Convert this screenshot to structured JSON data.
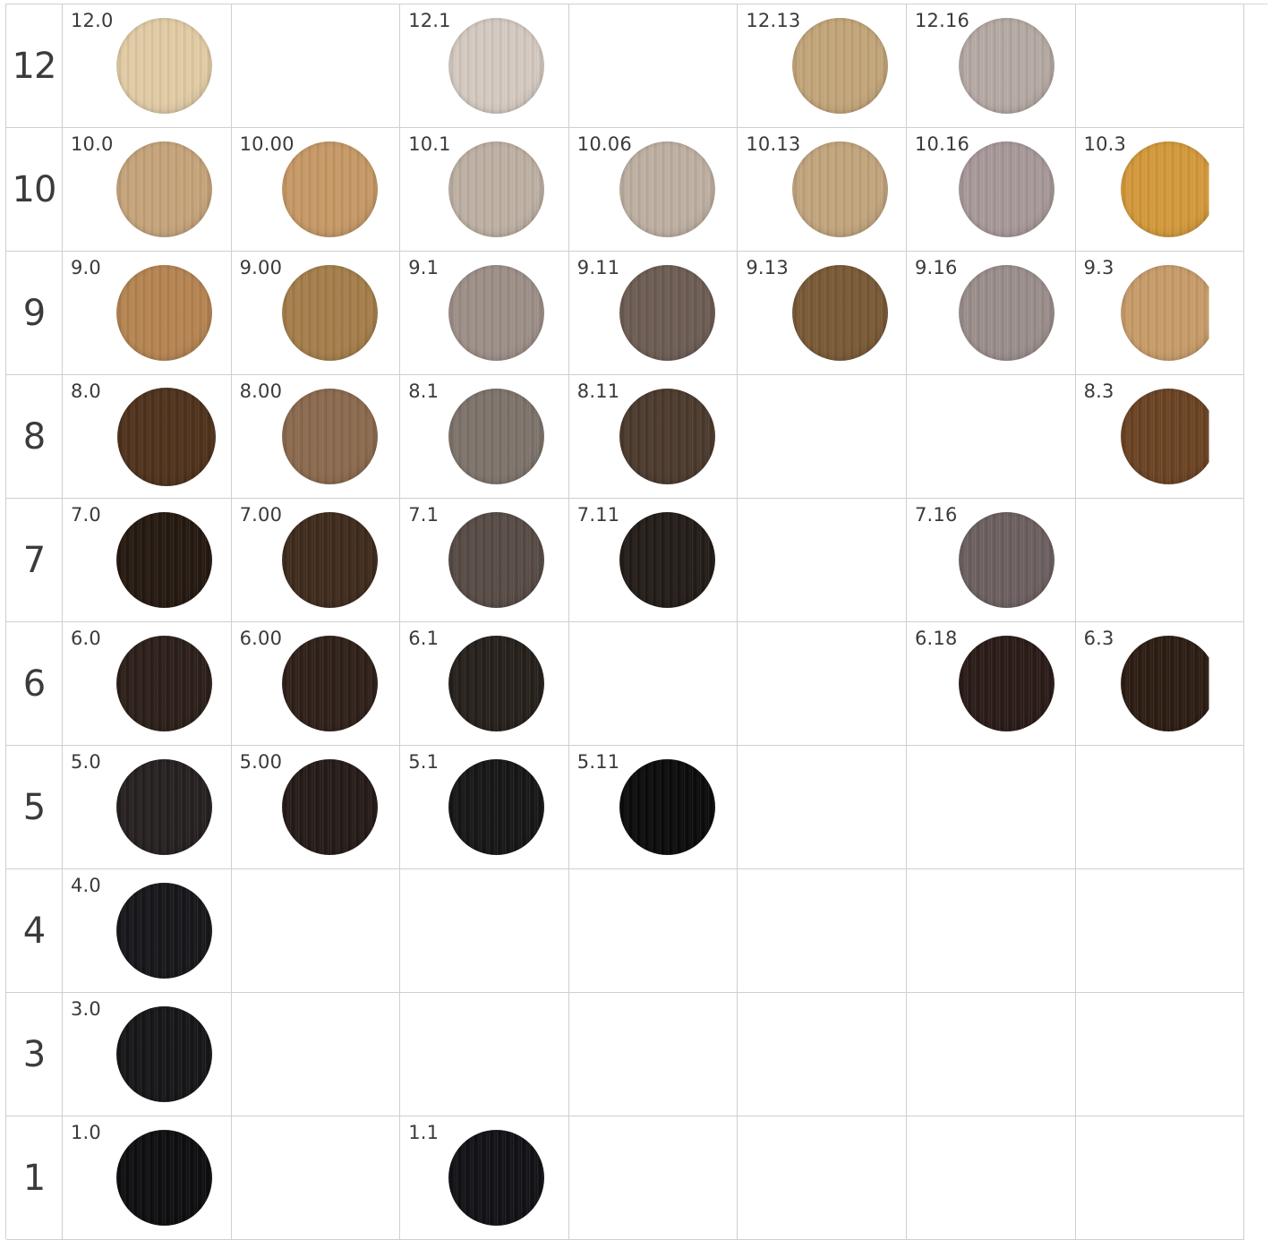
{
  "rows": [
    {
      "level": "12",
      "cells": [
        {
          "code": "12.0",
          "color": "#e3cda6"
        },
        null,
        {
          "code": "12.1",
          "color": "#d6cbc2"
        },
        null,
        {
          "code": "12.13",
          "color": "#c4a67a"
        },
        {
          "code": "12.16",
          "color": "#b6aaa4"
        },
        null
      ]
    },
    {
      "level": "10",
      "cells": [
        {
          "code": "10.0",
          "color": "#c7a57b"
        },
        {
          "code": "10.00",
          "color": "#c89a66"
        },
        {
          "code": "10.1",
          "color": "#bfb1a4"
        },
        {
          "code": "10.06",
          "color": "#bfb1a3"
        },
        {
          "code": "10.13",
          "color": "#c3a67e"
        },
        {
          "code": "10.16",
          "color": "#a9999a"
        },
        {
          "code": "10.3",
          "color": "#d59a3b"
        }
      ]
    },
    {
      "level": "9",
      "cells": [
        {
          "code": "9.0",
          "color": "#b78552"
        },
        {
          "code": "9.00",
          "color": "#a67f4b"
        },
        {
          "code": "9.1",
          "color": "#9e9089"
        },
        {
          "code": "9.11",
          "color": "#6d5d54"
        },
        {
          "code": "9.13",
          "color": "#7a5a36"
        },
        {
          "code": "9.16",
          "color": "#9b8f8c"
        },
        {
          "code": "9.3",
          "color": "#c99d6a"
        }
      ]
    },
    {
      "level": "8",
      "cells": [
        {
          "code": "8.0",
          "color": "#4f321c"
        },
        {
          "code": "8.00",
          "color": "#8c6a4e"
        },
        {
          "code": "8.1",
          "color": "#7e746c"
        },
        {
          "code": "8.11",
          "color": "#4c3a2d"
        },
        null,
        null,
        {
          "code": "8.3",
          "color": "#6c4323"
        }
      ]
    },
    {
      "level": "7",
      "cells": [
        {
          "code": "7.0",
          "color": "#251911"
        },
        {
          "code": "7.00",
          "color": "#3f2b1d"
        },
        {
          "code": "7.1",
          "color": "#574b45"
        },
        {
          "code": "7.11",
          "color": "#231c18"
        },
        null,
        {
          "code": "7.16",
          "color": "#6d6061"
        },
        null
      ]
    },
    {
      "level": "6",
      "cells": [
        {
          "code": "6.0",
          "color": "#2c1f19"
        },
        {
          "code": "6.00",
          "color": "#2f2019"
        },
        {
          "code": "6.1",
          "color": "#26201b"
        },
        null,
        null,
        {
          "code": "6.18",
          "color": "#2a1b17"
        },
        {
          "code": "6.3",
          "color": "#2d1d13"
        }
      ]
    },
    {
      "level": "5",
      "cells": [
        {
          "code": "5.0",
          "color": "#262020"
        },
        {
          "code": "5.00",
          "color": "#251b18"
        },
        {
          "code": "5.1",
          "color": "#171617"
        },
        {
          "code": "5.11",
          "color": "#0c0b0c"
        },
        null,
        null,
        null
      ]
    },
    {
      "level": "4",
      "cells": [
        {
          "code": "4.0",
          "color": "#17161a"
        },
        null,
        null,
        null,
        null,
        null,
        null
      ]
    },
    {
      "level": "3",
      "cells": [
        {
          "code": "3.0",
          "color": "#161618"
        },
        null,
        null,
        null,
        null,
        null,
        null
      ]
    },
    {
      "level": "1",
      "cells": [
        {
          "code": "1.0",
          "color": "#0e0d0f"
        },
        null,
        {
          "code": "1.1",
          "color": "#121216"
        },
        null,
        null,
        null,
        null
      ]
    }
  ]
}
